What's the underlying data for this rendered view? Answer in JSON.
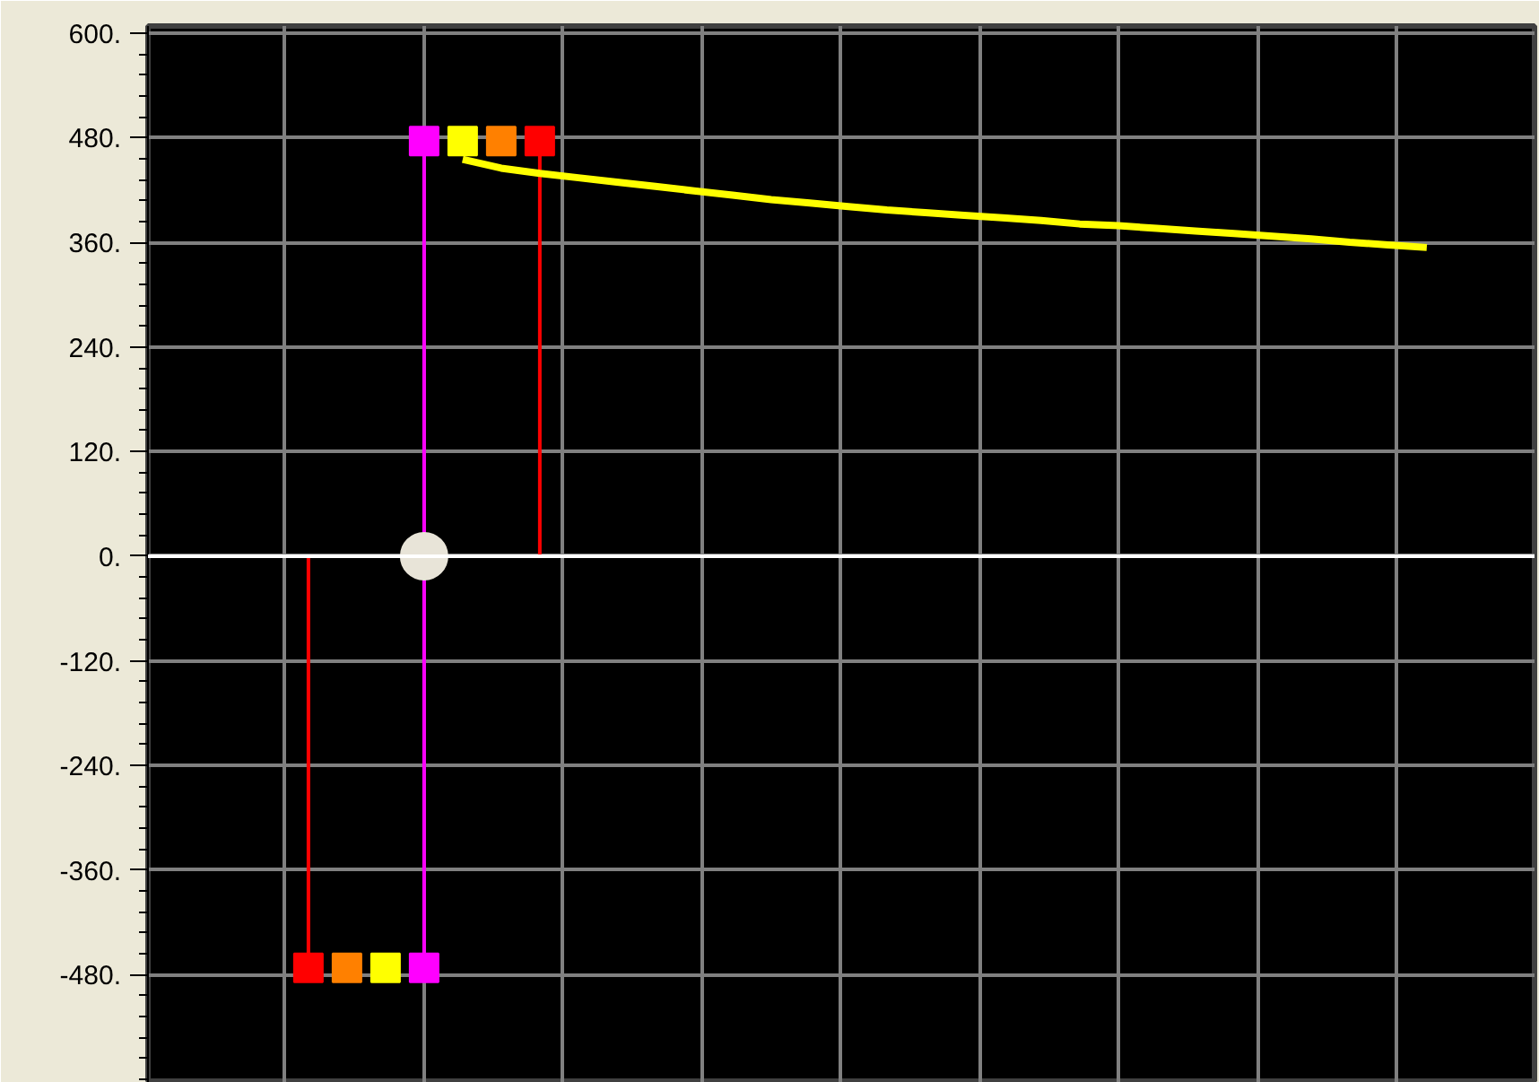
{
  "chart_data": {
    "type": "line",
    "categories": [
      null,
      null,
      null,
      null,
      null,
      null,
      null,
      null,
      null,
      null,
      null,
      null,
      null,
      null,
      null,
      null,
      null,
      null,
      null,
      null,
      null,
      null,
      null,
      null,
      null,
      null,
      null,
      null,
      null,
      null,
      null,
      null,
      null,
      null,
      null,
      null
    ],
    "ylim": [
      -604,
      608
    ],
    "yticks": [
      {
        "value": 600,
        "label": "600."
      },
      {
        "value": 480,
        "label": "480."
      },
      {
        "value": 360,
        "label": "360."
      },
      {
        "value": 240,
        "label": "240."
      },
      {
        "value": 120,
        "label": "120."
      },
      {
        "value": 0,
        "label": "0."
      },
      {
        "value": -120,
        "label": "-120."
      },
      {
        "value": -240,
        "label": "-240."
      },
      {
        "value": -360,
        "label": "-360."
      },
      {
        "value": -480,
        "label": "-480."
      }
    ],
    "tick_labels": "y",
    "grid": true,
    "ref_lines": [
      {
        "axis": "y",
        "value": 0,
        "color": "#ffffff"
      }
    ],
    "series": [
      {
        "type": "lollipop",
        "color": "#ff0000",
        "marker": "square",
        "values": [
          null,
          null,
          null,
          null,
          -472,
          null,
          null,
          null,
          null,
          null,
          476,
          null,
          null,
          null,
          null,
          null,
          null,
          null,
          null,
          null,
          null,
          null,
          null,
          null,
          null,
          null,
          null,
          null,
          null,
          null,
          null,
          null,
          null,
          null,
          null,
          null
        ]
      },
      {
        "type": "scatter",
        "color": "#ff8000",
        "marker": "square",
        "values": [
          null,
          null,
          null,
          null,
          null,
          -472,
          null,
          null,
          null,
          476,
          null,
          null,
          null,
          null,
          null,
          null,
          null,
          null,
          null,
          null,
          null,
          null,
          null,
          null,
          null,
          null,
          null,
          null,
          null,
          null,
          null,
          null,
          null,
          null,
          null,
          null
        ]
      },
      {
        "type": "scatter",
        "color": "#ffff00",
        "marker": "square",
        "values": [
          null,
          null,
          null,
          null,
          null,
          null,
          -472,
          null,
          476,
          null,
          null,
          null,
          null,
          null,
          null,
          null,
          null,
          null,
          null,
          null,
          null,
          null,
          null,
          null,
          null,
          null,
          null,
          null,
          null,
          null,
          null,
          null,
          null,
          null,
          null,
          null
        ]
      },
      {
        "type": "lollipop",
        "color": "#ff00ff",
        "marker": "square",
        "values": [
          null,
          null,
          null,
          null,
          null,
          null,
          null,
          476,
          null,
          null,
          null,
          null,
          null,
          null,
          null,
          null,
          null,
          null,
          null,
          null,
          null,
          null,
          null,
          null,
          null,
          null,
          null,
          null,
          null,
          null,
          null,
          null,
          null,
          null,
          null,
          null
        ]
      },
      {
        "type": "lollipop",
        "color": "#ff00ff",
        "marker": "square",
        "values": [
          null,
          null,
          null,
          null,
          null,
          null,
          null,
          -472,
          null,
          null,
          null,
          null,
          null,
          null,
          null,
          null,
          null,
          null,
          null,
          null,
          null,
          null,
          null,
          null,
          null,
          null,
          null,
          null,
          null,
          null,
          null,
          null,
          null,
          null,
          null,
          null
        ]
      },
      {
        "color": "#ffff00",
        "values": [
          null,
          null,
          null,
          null,
          null,
          null,
          null,
          null,
          455,
          445,
          439,
          434,
          429,
          424,
          419,
          414,
          409,
          405,
          401,
          397,
          394,
          391,
          388,
          385,
          381,
          379,
          376,
          373,
          370,
          367,
          364,
          360,
          357,
          354,
          null,
          null
        ]
      },
      {
        "type": "scatter",
        "color": "#e8e4d8",
        "marker": "circle",
        "values": [
          null,
          null,
          null,
          null,
          null,
          null,
          null,
          0,
          null,
          null,
          null,
          null,
          null,
          null,
          null,
          null,
          null,
          null,
          null,
          null,
          null,
          null,
          null,
          null,
          null,
          null,
          null,
          null,
          null,
          null,
          null,
          null,
          null,
          null,
          null,
          null
        ]
      }
    ]
  }
}
